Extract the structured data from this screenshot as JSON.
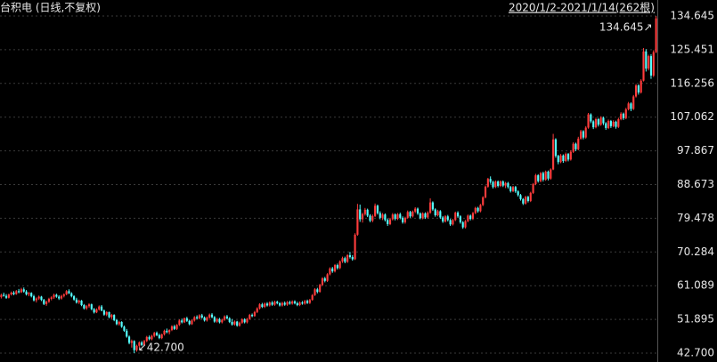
{
  "chart_data": {
    "type": "candlestick",
    "title": "台积电 (日线,不复权)",
    "range_label": "2020/1/2-2021/1/14(262根)",
    "high_label": "134.645↗",
    "low_label": "↙42.700",
    "up_color": "#ff3c3c",
    "down_color": "#54ffff",
    "grid": true,
    "ylim": [
      42.7,
      134.645
    ],
    "yticks": [
      {
        "value": 42.7,
        "label": "42.700"
      },
      51.895,
      61.089,
      70.284,
      79.478,
      88.673,
      97.867,
      107.062,
      116.256,
      125.451,
      134.645
    ],
    "candles": [
      [
        58.0,
        58.9,
        57.6,
        58.6
      ],
      [
        58.6,
        59.2,
        58.1,
        58.3
      ],
      [
        58.3,
        58.8,
        57.5,
        57.8
      ],
      [
        57.8,
        58.9,
        57.6,
        58.7
      ],
      [
        58.7,
        59.5,
        58.4,
        59.2
      ],
      [
        59.2,
        59.6,
        58.5,
        58.8
      ],
      [
        58.8,
        59.9,
        58.6,
        59.6
      ],
      [
        59.6,
        60.2,
        59.0,
        59.3
      ],
      [
        59.3,
        60.5,
        59.1,
        60.1
      ],
      [
        60.1,
        60.6,
        59.2,
        59.5
      ],
      [
        59.5,
        59.9,
        58.4,
        58.7
      ],
      [
        58.7,
        59.4,
        58.2,
        59.1
      ],
      [
        59.1,
        59.3,
        57.9,
        58.2
      ],
      [
        58.2,
        58.6,
        56.8,
        57.1
      ],
      [
        57.1,
        57.9,
        56.5,
        57.6
      ],
      [
        57.6,
        58.4,
        57.2,
        58.1
      ],
      [
        58.1,
        58.3,
        56.9,
        57.2
      ],
      [
        57.2,
        57.5,
        55.8,
        56.1
      ],
      [
        56.1,
        57.0,
        55.6,
        56.7
      ],
      [
        56.7,
        57.8,
        56.4,
        57.5
      ],
      [
        57.5,
        58.2,
        57.1,
        57.9
      ],
      [
        57.9,
        58.9,
        57.5,
        58.6
      ],
      [
        58.6,
        58.9,
        57.8,
        58.1
      ],
      [
        58.1,
        58.5,
        57.2,
        57.6
      ],
      [
        57.6,
        58.6,
        57.3,
        58.3
      ],
      [
        58.3,
        59.0,
        57.9,
        58.7
      ],
      [
        58.7,
        59.9,
        58.5,
        59.6
      ],
      [
        59.6,
        60.1,
        58.8,
        59.0
      ],
      [
        59.0,
        59.3,
        57.9,
        58.2
      ],
      [
        58.2,
        58.5,
        57.0,
        57.3
      ],
      [
        57.3,
        57.8,
        56.2,
        56.5
      ],
      [
        56.5,
        57.3,
        56.1,
        57.0
      ],
      [
        57.0,
        57.2,
        55.5,
        55.8
      ],
      [
        55.8,
        56.1,
        54.6,
        54.9
      ],
      [
        54.9,
        55.8,
        54.5,
        55.5
      ],
      [
        55.5,
        56.3,
        55.1,
        56.0
      ],
      [
        56.0,
        56.2,
        54.4,
        54.7
      ],
      [
        54.7,
        55.0,
        53.5,
        53.8
      ],
      [
        53.8,
        54.9,
        53.6,
        54.6
      ],
      [
        54.6,
        55.7,
        54.3,
        55.4
      ],
      [
        55.4,
        55.8,
        54.1,
        54.3
      ],
      [
        54.3,
        54.6,
        52.9,
        53.2
      ],
      [
        53.2,
        54.1,
        52.8,
        53.9
      ],
      [
        53.9,
        54.0,
        52.2,
        52.5
      ],
      [
        52.5,
        53.4,
        52.0,
        53.1
      ],
      [
        53.1,
        53.3,
        51.4,
        51.7
      ],
      [
        51.7,
        52.0,
        50.3,
        50.6
      ],
      [
        50.6,
        51.5,
        50.2,
        51.2
      ],
      [
        51.2,
        51.4,
        49.6,
        49.9
      ],
      [
        49.9,
        50.2,
        48.5,
        48.8
      ],
      [
        48.8,
        49.3,
        46.9,
        47.2
      ],
      [
        47.2,
        47.5,
        45.1,
        45.5
      ],
      [
        45.5,
        46.4,
        44.2,
        46.0
      ],
      [
        46.0,
        46.2,
        42.7,
        43.5
      ],
      [
        43.5,
        45.0,
        43.1,
        44.7
      ],
      [
        44.7,
        45.9,
        44.3,
        45.6
      ],
      [
        45.6,
        46.0,
        44.6,
        44.9
      ],
      [
        44.9,
        46.3,
        44.6,
        46.0
      ],
      [
        46.0,
        47.4,
        45.7,
        47.1
      ],
      [
        47.1,
        47.5,
        46.2,
        46.5
      ],
      [
        46.5,
        47.7,
        46.2,
        47.4
      ],
      [
        47.4,
        48.5,
        47.0,
        48.2
      ],
      [
        48.2,
        48.6,
        47.3,
        47.6
      ],
      [
        47.6,
        48.0,
        46.5,
        46.8
      ],
      [
        46.8,
        48.0,
        46.5,
        47.8
      ],
      [
        47.8,
        49.1,
        47.5,
        48.8
      ],
      [
        48.8,
        49.4,
        48.1,
        48.4
      ],
      [
        48.4,
        49.2,
        47.8,
        49.0
      ],
      [
        49.0,
        50.3,
        48.7,
        50.0
      ],
      [
        50.0,
        50.4,
        49.0,
        49.3
      ],
      [
        49.3,
        50.6,
        49.0,
        50.4
      ],
      [
        50.4,
        51.9,
        50.1,
        51.6
      ],
      [
        51.6,
        52.1,
        50.8,
        51.1
      ],
      [
        51.1,
        52.4,
        50.9,
        52.2
      ],
      [
        52.2,
        52.6,
        51.2,
        51.5
      ],
      [
        51.5,
        51.8,
        50.3,
        50.6
      ],
      [
        50.6,
        51.9,
        50.4,
        51.6
      ],
      [
        51.6,
        52.8,
        51.3,
        52.5
      ],
      [
        52.5,
        53.0,
        51.9,
        52.2
      ],
      [
        52.2,
        53.3,
        51.9,
        53.0
      ],
      [
        53.0,
        53.4,
        52.1,
        52.4
      ],
      [
        52.4,
        52.7,
        51.3,
        51.6
      ],
      [
        51.6,
        52.7,
        51.3,
        52.4
      ],
      [
        52.4,
        53.5,
        52.1,
        53.2
      ],
      [
        53.2,
        53.6,
        52.2,
        52.5
      ],
      [
        52.5,
        52.8,
        51.0,
        51.3
      ],
      [
        51.3,
        52.3,
        51.0,
        52.0
      ],
      [
        52.0,
        52.3,
        50.8,
        51.1
      ],
      [
        51.1,
        52.1,
        50.8,
        51.8
      ],
      [
        51.8,
        53.0,
        51.5,
        52.7
      ],
      [
        52.7,
        53.1,
        51.9,
        52.2
      ],
      [
        52.2,
        52.5,
        50.9,
        51.2
      ],
      [
        51.2,
        52.0,
        50.2,
        50.5
      ],
      [
        50.5,
        51.6,
        50.2,
        51.3
      ],
      [
        51.3,
        51.5,
        49.9,
        50.2
      ],
      [
        50.2,
        51.3,
        49.9,
        51.0
      ],
      [
        51.0,
        52.2,
        50.7,
        51.9
      ],
      [
        51.9,
        52.2,
        50.8,
        51.1
      ],
      [
        51.1,
        52.3,
        50.8,
        52.0
      ],
      [
        52.0,
        53.4,
        51.8,
        53.1
      ],
      [
        53.1,
        53.5,
        52.5,
        52.8
      ],
      [
        52.8,
        54.2,
        52.6,
        53.9
      ],
      [
        53.9,
        55.2,
        53.6,
        54.9
      ],
      [
        54.9,
        56.3,
        54.6,
        56.0
      ],
      [
        56.0,
        56.4,
        55.0,
        55.3
      ],
      [
        55.3,
        56.5,
        55.0,
        56.2
      ],
      [
        56.2,
        56.6,
        55.4,
        55.7
      ],
      [
        55.7,
        56.8,
        55.4,
        56.5
      ],
      [
        56.5,
        56.9,
        55.6,
        55.9
      ],
      [
        55.9,
        57.0,
        55.6,
        56.7
      ],
      [
        56.7,
        57.0,
        56.0,
        56.3
      ],
      [
        56.3,
        56.6,
        55.4,
        55.7
      ],
      [
        55.7,
        56.7,
        55.4,
        56.4
      ],
      [
        56.4,
        56.8,
        55.6,
        55.9
      ],
      [
        55.9,
        56.9,
        55.6,
        56.6
      ],
      [
        56.6,
        57.0,
        55.9,
        56.2
      ],
      [
        56.2,
        57.1,
        55.9,
        56.8
      ],
      [
        56.8,
        57.1,
        56.0,
        56.3
      ],
      [
        56.3,
        56.7,
        55.5,
        55.8
      ],
      [
        55.8,
        56.8,
        55.5,
        56.5
      ],
      [
        56.5,
        56.9,
        55.9,
        56.2
      ],
      [
        56.2,
        57.2,
        55.9,
        56.9
      ],
      [
        56.9,
        57.3,
        56.1,
        56.4
      ],
      [
        56.4,
        57.5,
        56.1,
        57.2
      ],
      [
        57.2,
        58.8,
        57.0,
        58.5
      ],
      [
        58.5,
        60.4,
        58.3,
        60.1
      ],
      [
        60.1,
        60.5,
        59.0,
        59.4
      ],
      [
        59.4,
        61.6,
        59.2,
        61.3
      ],
      [
        61.3,
        63.4,
        61.0,
        63.1
      ],
      [
        63.1,
        63.5,
        62.0,
        62.4
      ],
      [
        62.4,
        64.5,
        62.1,
        64.2
      ],
      [
        64.2,
        66.1,
        63.9,
        65.8
      ],
      [
        65.8,
        66.2,
        64.6,
        65.0
      ],
      [
        65.0,
        67.0,
        64.7,
        66.7
      ],
      [
        66.7,
        67.1,
        65.5,
        65.9
      ],
      [
        65.9,
        68.0,
        65.6,
        67.7
      ],
      [
        67.7,
        69.0,
        67.3,
        68.6
      ],
      [
        68.6,
        69.0,
        67.2,
        67.6
      ],
      [
        67.6,
        69.7,
        67.3,
        69.4
      ],
      [
        69.4,
        70.3,
        68.5,
        68.9
      ],
      [
        68.9,
        69.4,
        67.9,
        68.3
      ],
      [
        68.3,
        75.4,
        68.1,
        75.0
      ],
      [
        75.0,
        83.4,
        74.7,
        81.9
      ],
      [
        81.9,
        83.2,
        78.5,
        79.2
      ],
      [
        79.2,
        81.0,
        78.3,
        80.6
      ],
      [
        80.6,
        82.3,
        80.2,
        81.8
      ],
      [
        81.8,
        82.1,
        79.8,
        80.2
      ],
      [
        80.2,
        80.6,
        78.4,
        78.8
      ],
      [
        78.8,
        80.5,
        78.4,
        80.1
      ],
      [
        80.1,
        83.5,
        79.8,
        82.9
      ],
      [
        82.9,
        83.2,
        80.5,
        80.9
      ],
      [
        80.9,
        81.4,
        79.2,
        79.6
      ],
      [
        79.6,
        80.9,
        79.0,
        80.5
      ],
      [
        80.5,
        80.8,
        78.6,
        79.0
      ],
      [
        79.0,
        79.4,
        77.4,
        77.9
      ],
      [
        77.9,
        79.6,
        77.6,
        79.2
      ],
      [
        79.2,
        80.9,
        78.9,
        80.5
      ],
      [
        80.5,
        80.8,
        78.9,
        79.3
      ],
      [
        79.3,
        80.9,
        79.0,
        80.6
      ],
      [
        80.6,
        81.0,
        79.2,
        79.6
      ],
      [
        79.6,
        80.0,
        78.0,
        78.4
      ],
      [
        78.4,
        79.9,
        78.0,
        79.6
      ],
      [
        79.6,
        81.6,
        79.3,
        81.2
      ],
      [
        81.2,
        81.5,
        79.6,
        80.0
      ],
      [
        80.0,
        81.6,
        79.7,
        81.3
      ],
      [
        81.3,
        82.5,
        80.9,
        82.1
      ],
      [
        82.1,
        82.4,
        80.4,
        80.8
      ],
      [
        80.8,
        81.1,
        79.2,
        79.5
      ],
      [
        79.5,
        81.1,
        79.2,
        80.8
      ],
      [
        80.8,
        81.1,
        79.3,
        79.7
      ],
      [
        79.7,
        81.4,
        79.4,
        81.0
      ],
      [
        81.0,
        84.9,
        80.7,
        83.8
      ],
      [
        83.8,
        84.1,
        81.5,
        81.9
      ],
      [
        81.9,
        82.2,
        79.9,
        80.3
      ],
      [
        80.3,
        81.8,
        80.0,
        81.4
      ],
      [
        81.4,
        81.7,
        79.3,
        79.7
      ],
      [
        79.7,
        80.1,
        78.2,
        78.6
      ],
      [
        78.6,
        80.3,
        78.3,
        80.0
      ],
      [
        80.0,
        80.4,
        78.6,
        79.0
      ],
      [
        79.0,
        79.3,
        77.4,
        77.8
      ],
      [
        77.8,
        79.3,
        77.5,
        79.0
      ],
      [
        79.0,
        81.3,
        78.7,
        81.0
      ],
      [
        81.0,
        81.4,
        79.6,
        80.0
      ],
      [
        80.0,
        80.3,
        78.0,
        78.4
      ],
      [
        78.4,
        78.7,
        76.6,
        77.0
      ],
      [
        77.0,
        79.0,
        76.7,
        78.7
      ],
      [
        78.7,
        80.5,
        78.4,
        80.2
      ],
      [
        80.2,
        80.5,
        78.9,
        79.3
      ],
      [
        79.3,
        81.2,
        79.0,
        80.9
      ],
      [
        80.9,
        82.6,
        80.6,
        82.3
      ],
      [
        82.3,
        82.6,
        81.0,
        81.4
      ],
      [
        81.4,
        83.4,
        81.1,
        83.1
      ],
      [
        83.1,
        85.5,
        82.8,
        85.2
      ],
      [
        85.2,
        88.4,
        84.9,
        88.1
      ],
      [
        88.1,
        90.5,
        87.8,
        90.2
      ],
      [
        90.2,
        90.9,
        88.9,
        89.4
      ],
      [
        89.4,
        89.7,
        87.6,
        88.0
      ],
      [
        88.0,
        89.8,
        87.7,
        89.5
      ],
      [
        89.5,
        89.8,
        87.9,
        88.3
      ],
      [
        88.3,
        89.8,
        88.0,
        89.5
      ],
      [
        89.5,
        89.8,
        88.0,
        88.4
      ],
      [
        88.4,
        89.4,
        87.7,
        89.1
      ],
      [
        89.1,
        89.4,
        87.6,
        88.0
      ],
      [
        88.0,
        88.3,
        86.5,
        86.9
      ],
      [
        86.9,
        88.3,
        86.6,
        88.0
      ],
      [
        88.0,
        88.3,
        86.4,
        86.8
      ],
      [
        86.8,
        87.1,
        85.4,
        85.8
      ],
      [
        85.8,
        86.1,
        84.3,
        84.7
      ],
      [
        84.7,
        85.0,
        83.1,
        83.5
      ],
      [
        83.5,
        85.6,
        83.2,
        85.3
      ],
      [
        85.3,
        85.6,
        83.8,
        84.2
      ],
      [
        84.2,
        86.7,
        83.9,
        86.4
      ],
      [
        86.4,
        89.1,
        86.1,
        88.8
      ],
      [
        88.8,
        91.6,
        88.5,
        91.2
      ],
      [
        91.2,
        91.5,
        89.2,
        89.6
      ],
      [
        89.6,
        92.1,
        89.3,
        91.8
      ],
      [
        91.8,
        92.2,
        89.5,
        90.0
      ],
      [
        90.0,
        92.5,
        89.7,
        92.2
      ],
      [
        92.2,
        92.5,
        89.8,
        90.3
      ],
      [
        90.3,
        93.1,
        90.0,
        92.8
      ],
      [
        92.8,
        102.5,
        92.6,
        101.0
      ],
      [
        101.0,
        101.3,
        96.0,
        96.5
      ],
      [
        96.5,
        96.8,
        94.2,
        94.8
      ],
      [
        94.8,
        97.0,
        94.5,
        96.6
      ],
      [
        96.6,
        96.9,
        94.6,
        95.1
      ],
      [
        95.1,
        97.4,
        94.8,
        97.0
      ],
      [
        97.0,
        97.3,
        95.0,
        95.5
      ],
      [
        95.5,
        98.0,
        95.2,
        97.6
      ],
      [
        97.6,
        100.2,
        97.3,
        99.8
      ],
      [
        99.8,
        100.1,
        97.8,
        98.3
      ],
      [
        98.3,
        101.7,
        98.0,
        101.2
      ],
      [
        101.2,
        103.6,
        100.9,
        103.2
      ],
      [
        103.2,
        103.5,
        101.0,
        101.5
      ],
      [
        101.5,
        104.6,
        101.2,
        104.2
      ],
      [
        104.2,
        108.2,
        103.9,
        107.8
      ],
      [
        107.8,
        108.1,
        105.4,
        105.9
      ],
      [
        105.9,
        106.2,
        103.8,
        104.3
      ],
      [
        104.3,
        106.9,
        104.0,
        106.5
      ],
      [
        106.5,
        106.8,
        104.5,
        105.0
      ],
      [
        105.0,
        107.3,
        104.7,
        106.9
      ],
      [
        106.9,
        107.2,
        104.9,
        105.4
      ],
      [
        105.4,
        105.7,
        103.6,
        104.1
      ],
      [
        104.1,
        106.4,
        103.8,
        106.0
      ],
      [
        106.0,
        106.3,
        104.1,
        104.6
      ],
      [
        104.6,
        106.2,
        104.3,
        105.8
      ],
      [
        105.8,
        106.1,
        103.9,
        104.4
      ],
      [
        104.4,
        106.9,
        104.1,
        106.5
      ],
      [
        106.5,
        108.4,
        106.2,
        108.0
      ],
      [
        108.0,
        108.3,
        106.3,
        106.8
      ],
      [
        106.8,
        109.6,
        106.5,
        109.2
      ],
      [
        109.2,
        111.2,
        108.9,
        110.8
      ],
      [
        110.8,
        111.1,
        108.7,
        109.3
      ],
      [
        109.3,
        113.1,
        109.0,
        112.7
      ],
      [
        112.7,
        116.1,
        112.4,
        115.7
      ],
      [
        115.7,
        116.0,
        113.2,
        113.8
      ],
      [
        113.8,
        117.4,
        113.5,
        117.0
      ],
      [
        117.0,
        125.9,
        116.8,
        125.0
      ],
      [
        125.0,
        125.6,
        119.5,
        120.3
      ],
      [
        120.3,
        124.1,
        119.8,
        123.7
      ],
      [
        123.7,
        124.2,
        117.5,
        118.4
      ],
      [
        118.4,
        125.3,
        118.0,
        124.8
      ],
      [
        124.8,
        134.645,
        124.5,
        134.0
      ]
    ]
  }
}
